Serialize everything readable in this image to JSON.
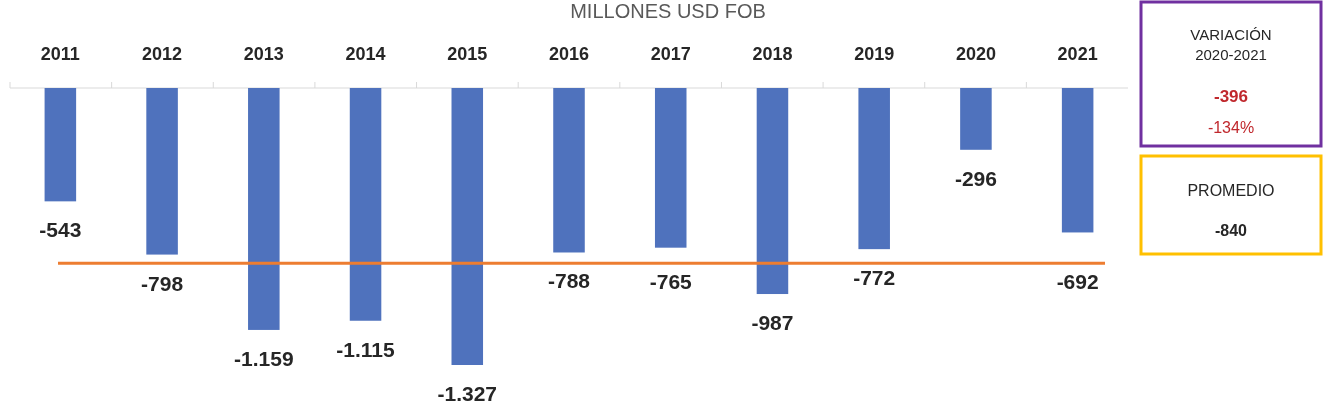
{
  "chart_data": {
    "type": "bar",
    "title": "MILLONES USD FOB",
    "categories": [
      "2011",
      "2012",
      "2013",
      "2014",
      "2015",
      "2016",
      "2017",
      "2018",
      "2019",
      "2020",
      "2021"
    ],
    "values": [
      -543,
      -798,
      -1159,
      -1115,
      -1327,
      -788,
      -765,
      -987,
      -772,
      -296,
      -692
    ],
    "value_labels": [
      "-543",
      "-798",
      "-1.159",
      "-1.115",
      "-1.327",
      "-788",
      "-765",
      "-987",
      "-772",
      "-296",
      "-692"
    ],
    "color": "#4f72bd",
    "ref_lines": [
      {
        "axis": "y",
        "value": -840,
        "color": "#ed7d31"
      }
    ],
    "annotations": [
      "VARIACIÓN 2020-2021",
      "-396",
      "-134%",
      "PROMEDIO",
      "-840"
    ],
    "grid": false
  }
}
